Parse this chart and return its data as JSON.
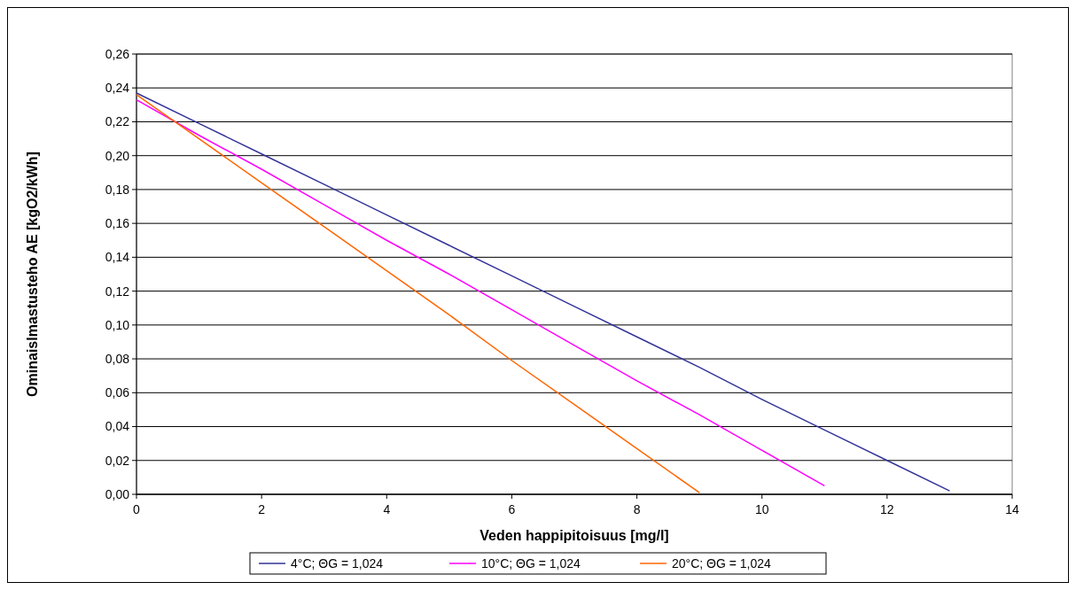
{
  "chart_data": {
    "type": "line",
    "xlabel": "Veden happipitoisuus [mg/l]",
    "ylabel": "Ominaislmastusteho AE  [kgO2/kWh]",
    "xlim": [
      0,
      14
    ],
    "xticks": [
      0,
      2,
      4,
      6,
      8,
      10,
      12,
      14
    ],
    "ylim": [
      0,
      0.26
    ],
    "yticks": [
      {
        "value": 0,
        "label": "0,00"
      },
      {
        "value": 0.02,
        "label": "0,02"
      },
      {
        "value": 0.04,
        "label": "0,04"
      },
      {
        "value": 0.06,
        "label": "0,06"
      },
      {
        "value": 0.08,
        "label": "0,08"
      },
      {
        "value": 0.1,
        "label": "0,10"
      },
      {
        "value": 0.12,
        "label": "0,12"
      },
      {
        "value": 0.14,
        "label": "0,14"
      },
      {
        "value": 0.16,
        "label": "0,16"
      },
      {
        "value": 0.18,
        "label": "0,18"
      },
      {
        "value": 0.2,
        "label": "0,20"
      },
      {
        "value": 0.22,
        "label": "0,22"
      },
      {
        "value": 0.24,
        "label": "0,24"
      },
      {
        "value": 0.26,
        "label": "0,26"
      }
    ],
    "grid": "y",
    "legend": "bottom",
    "marker": "none",
    "line_style": "solid",
    "series": [
      {
        "name": "4°C; ΘG = 1,024",
        "color": "#333399",
        "x": [
          0,
          1,
          2,
          3,
          4,
          5,
          6,
          7,
          8,
          9,
          10,
          11,
          12,
          13
        ],
        "values": [
          0.237,
          0.219,
          0.201,
          0.183,
          0.165,
          0.147,
          0.129,
          0.111,
          0.093,
          0.075,
          0.056,
          0.038,
          0.02,
          0.002
        ]
      },
      {
        "name": "10°C; ΘG = 1,024",
        "color": "#ff00ff",
        "x": [
          0,
          1,
          2,
          3,
          4,
          5,
          6,
          7,
          8,
          9,
          10,
          11
        ],
        "values": [
          0.233,
          0.212,
          0.192,
          0.171,
          0.15,
          0.13,
          0.109,
          0.088,
          0.067,
          0.047,
          0.026,
          0.005
        ]
      },
      {
        "name": "20°C; ΘG = 1,024",
        "color": "#ff6600",
        "x": [
          0,
          1,
          2,
          3,
          4,
          5,
          6,
          7,
          8,
          9
        ],
        "values": [
          0.236,
          0.21,
          0.184,
          0.158,
          0.132,
          0.106,
          0.079,
          0.053,
          0.027,
          0.001
        ]
      }
    ]
  }
}
